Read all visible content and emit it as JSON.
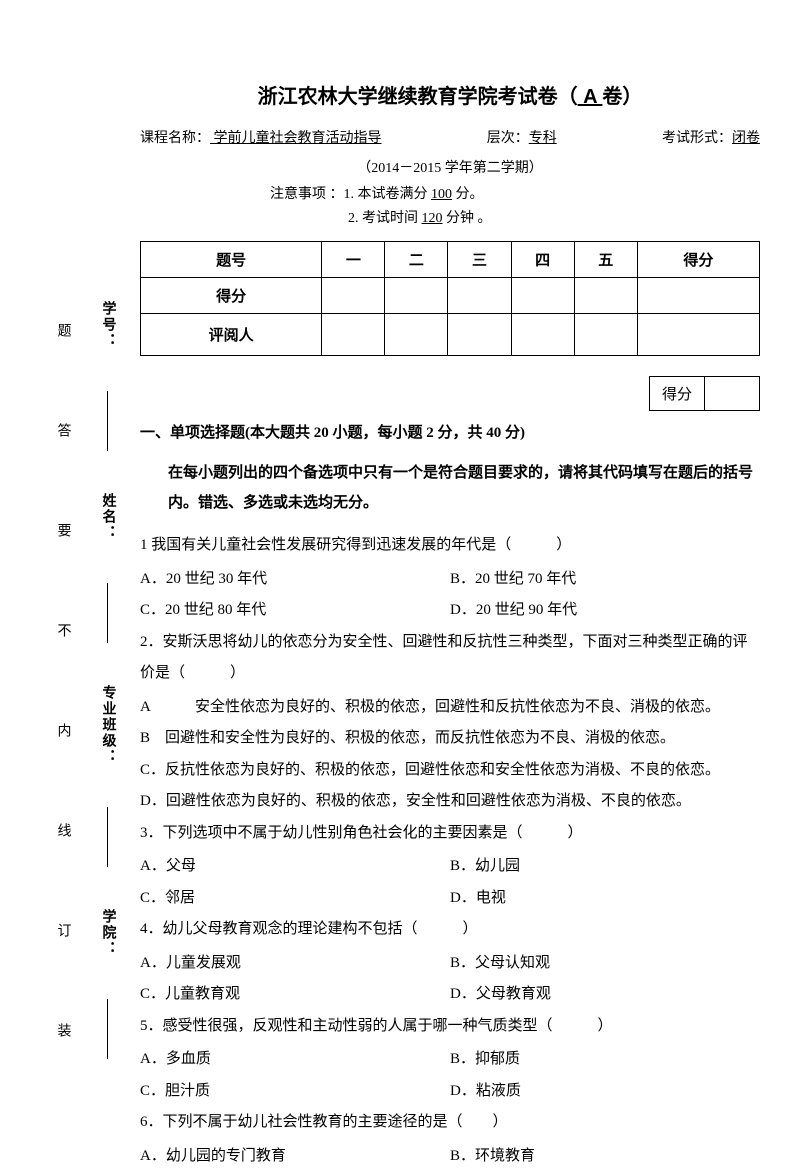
{
  "title_prefix": "浙江农林大学继续教育学院考试卷（",
  "paper_letter": " A ",
  "title_suffix": "卷）",
  "course_label": "课程名称：",
  "course_name": "     学前儿童社会教育活动指导          ",
  "level_label": "层次：",
  "level_value": "专科",
  "form_label": "考试形式：",
  "form_value": "闭卷",
  "semester": "（2014－2015 学年第二学期）",
  "notice1_prefix": "注意事项 ：1. 本试卷满分 ",
  "notice1_value": "100",
  "notice1_suffix": " 分。",
  "notice2_prefix": "2. 考试时间 ",
  "notice2_value": "120",
  "notice2_suffix": " 分钟 。",
  "table_headers": [
    "题号",
    "一",
    "二",
    "三",
    "四",
    "五",
    "得分"
  ],
  "table_row2_label": "得分",
  "table_row3_label": "评阅人",
  "small_box_label": "得分",
  "section1_title": "一、单项选择题(本大题共 20 小题，每小题 2 分，共 40 分)",
  "section1_instruction": "在每小题列出的四个备选项中只有一个是符合题目要求的，请将其代码填写在题后的括号内。错选、多选或未选均无分。",
  "questions": [
    {
      "text": "1 我国有关儿童社会性发展研究得到迅速发展的年代是（　　　）",
      "opts": [
        {
          "text": "A．20 世纪 30 年代",
          "w": "half"
        },
        {
          "text": "B．20 世纪 70 年代",
          "w": "half"
        },
        {
          "text": "C．20 世纪 80 年代",
          "w": "half"
        },
        {
          "text": "D．20 世纪 90 年代",
          "w": "half"
        }
      ]
    },
    {
      "text": "2．安斯沃思将幼儿的依恋分为安全性、回避性和反抗性三种类型，下面对三种类型正确的评价是（　　　）",
      "opts": [
        {
          "text": "A　　　安全性依恋为良好的、积极的依恋，回避性和反抗性依恋为不良、消极的依恋。",
          "w": "full"
        },
        {
          "text": "B　回避性和安全性为良好的、积极的依恋，而反抗性依恋为不良、消极的依恋。",
          "w": "full"
        },
        {
          "text": "C．反抗性依恋为良好的、积极的依恋，回避性依恋和安全性依恋为消极、不良的依恋。",
          "w": "full"
        },
        {
          "text": "D．回避性依恋为良好的、积极的依恋，安全性和回避性依恋为消极、不良的依恋。",
          "w": "full"
        }
      ]
    },
    {
      "text": "3．下列选项中不属于幼儿性别角色社会化的主要因素是（　　　）",
      "opts": [
        {
          "text": "A．父母",
          "w": "half"
        },
        {
          "text": "B．幼儿园",
          "w": "half"
        },
        {
          "text": "C．邻居",
          "w": "half"
        },
        {
          "text": "D．电视",
          "w": "half"
        }
      ]
    },
    {
      "text": "4．幼儿父母教育观念的理论建构不包括（　　　）",
      "opts": [
        {
          "text": "A．儿童发展观",
          "w": "half"
        },
        {
          "text": "B．父母认知观",
          "w": "half"
        },
        {
          "text": "C．儿童教育观",
          "w": "half"
        },
        {
          "text": "D．父母教育观",
          "w": "half"
        }
      ]
    },
    {
      "text": "5．感受性很强，反观性和主动性弱的人属于哪一种气质类型（　　　）",
      "opts": [
        {
          "text": "A．多血质",
          "w": "half"
        },
        {
          "text": "B．抑郁质",
          "w": "half"
        },
        {
          "text": "C．胆汁质",
          "w": "half"
        },
        {
          "text": "D．粘液质",
          "w": "half"
        }
      ]
    },
    {
      "text": "6．下列不属于幼儿社会性教育的主要途径的是（　　）",
      "opts": [
        {
          "text": "A．幼儿园的专门教育",
          "w": "half"
        },
        {
          "text": "B．环境教育",
          "w": "half"
        }
      ]
    }
  ],
  "sidebar_labels": [
    "学号：",
    "姓名：",
    "专业班级：",
    "学院："
  ],
  "sidebar_chars": [
    "题",
    "答",
    "要",
    "不",
    "内",
    "线",
    "订",
    "装"
  ]
}
